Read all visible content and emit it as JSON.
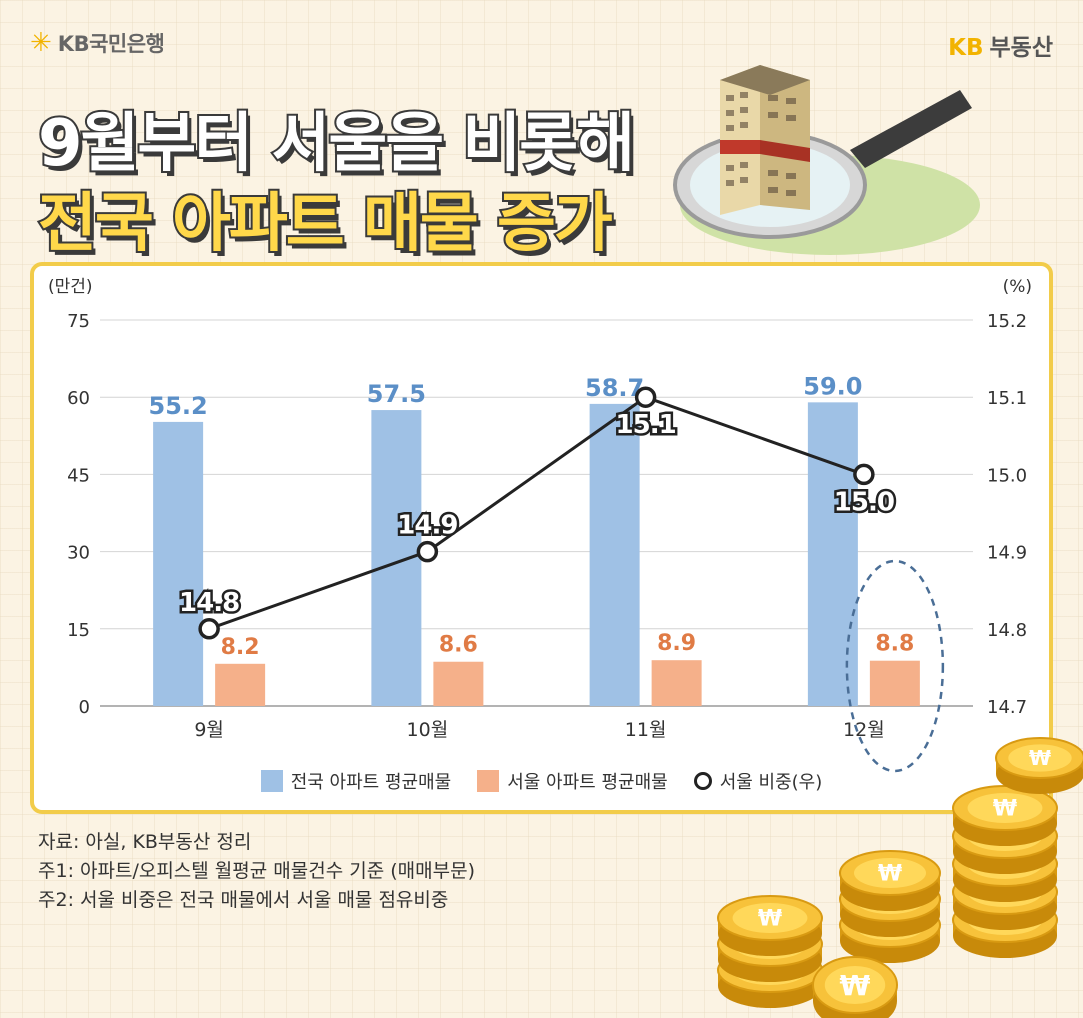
{
  "header": {
    "left_brand": "KB국민은행",
    "right_brand_kb": "KB",
    "right_brand_rest": "부동산"
  },
  "title": {
    "line1": "9월부터 서울을 비롯해",
    "line2": "전국 아파트 매물 증가"
  },
  "chart_data": {
    "type": "bar+line",
    "categories": [
      "9월",
      "10월",
      "11월",
      "12월"
    ],
    "left_axis": {
      "unit_label": "(만건)",
      "ticks": [
        0,
        15,
        30,
        45,
        60,
        75
      ],
      "range": [
        0,
        75
      ]
    },
    "right_axis": {
      "unit_label": "(%)",
      "ticks": [
        "14.7",
        "14.8",
        "14.9",
        "15.0",
        "15.1",
        "15.2"
      ],
      "range": [
        14.7,
        15.2
      ]
    },
    "series": [
      {
        "name": "전국 아파트 평균매물",
        "type": "bar",
        "axis": "left",
        "color": "#9fc1e5",
        "label_color": "#5b8fc7",
        "values": [
          55.2,
          57.5,
          58.7,
          59.0
        ]
      },
      {
        "name": "서울 아파트 평균매물",
        "type": "bar",
        "axis": "left",
        "color": "#f5b08a",
        "label_color": "#e07b45",
        "values": [
          8.2,
          8.6,
          8.9,
          8.8
        ]
      },
      {
        "name": "서울 비중(우)",
        "type": "line",
        "axis": "right",
        "color": "#222222",
        "values": [
          14.8,
          14.9,
          15.1,
          15.0
        ]
      }
    ],
    "highlight_category": "12월"
  },
  "labels": {
    "bar1": [
      "55.2",
      "57.5",
      "58.7",
      "59.0"
    ],
    "bar2": [
      "8.2",
      "8.6",
      "8.9",
      "8.8"
    ],
    "line": [
      "14.8",
      "14.9",
      "15.1",
      "15.0"
    ]
  },
  "legend": {
    "item1": "전국 아파트 평균매물",
    "item2": "서울 아파트 평균매물",
    "item3": "서울 비중(우)"
  },
  "notes": {
    "source": "자료: 아실, KB부동산 정리",
    "note1": "주1: 아파트/오피스텔 월평균 매물건수 기준 (매매부문)",
    "note2": "주2: 서울 비중은 전국 매물에서 서울 매물 점유비중"
  },
  "coin_symbol": "₩",
  "colors": {
    "accent_yellow": "#f2cc4a",
    "title_yellow": "#ffd84a"
  }
}
